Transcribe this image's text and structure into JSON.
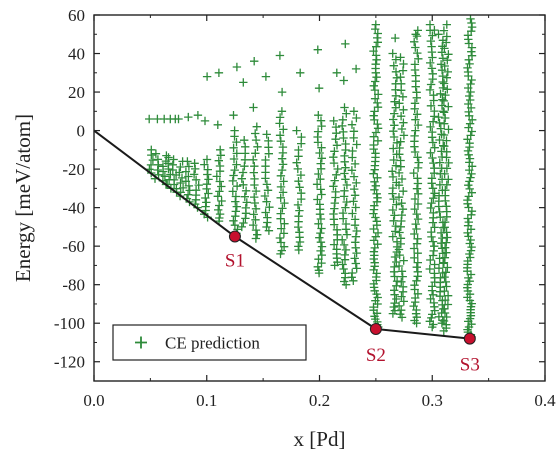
{
  "colors": {
    "points": "#2e8b3a",
    "hull_line": "#1a1a1a",
    "structure_marker": "#c8102e",
    "label_text": "#b3122e",
    "axis": "#222222"
  },
  "chart_data": {
    "type": "scatter",
    "xlabel": "x [Pd]",
    "ylabel": "Energy [meV/atom]",
    "xlim": [
      0.0,
      0.4
    ],
    "ylim": [
      -130,
      60
    ],
    "x_ticks": [
      0.0,
      0.1,
      0.2,
      0.3,
      0.4
    ],
    "x_tick_labels": [
      "0.0",
      "0.1",
      "0.2",
      "0.3",
      "0.4"
    ],
    "y_ticks": [
      -120,
      -100,
      -80,
      -60,
      -40,
      -20,
      0,
      20,
      40,
      60
    ],
    "y_tick_labels": [
      "-120",
      "-100",
      "-80",
      "-60",
      "-40",
      "-20",
      "0",
      "20",
      "40",
      "60"
    ],
    "grid": false,
    "legend": {
      "position": "bottom-left",
      "entries": [
        "CE prediction"
      ]
    },
    "series": [
      {
        "name": "CE prediction",
        "marker": "plus",
        "clusters": [
          {
            "x": 0.05,
            "ymin": -22,
            "ymax": -10,
            "density": 6
          },
          {
            "x": 0.0556,
            "ymin": -25,
            "ymax": -12,
            "density": 6
          },
          {
            "x": 0.0625,
            "ymin": -28,
            "ymax": -13,
            "density": 7
          },
          {
            "x": 0.0667,
            "ymin": -30,
            "ymax": -14,
            "density": 7
          },
          {
            "x": 0.0714,
            "ymin": -32,
            "ymax": -15,
            "density": 8
          },
          {
            "x": 0.0769,
            "ymin": -34,
            "ymax": -16,
            "density": 8
          },
          {
            "x": 0.0833,
            "ymin": -37,
            "ymax": -16,
            "density": 10
          },
          {
            "x": 0.0909,
            "ymin": -40,
            "ymax": -17,
            "density": 10
          },
          {
            "x": 0.1,
            "ymin": -45,
            "ymax": -15,
            "density": 14
          },
          {
            "x": 0.1111,
            "ymin": -47,
            "ymax": -10,
            "density": 16
          },
          {
            "x": 0.125,
            "ymin": -55,
            "ymax": 0,
            "density": 22
          },
          {
            "x": 0.1333,
            "ymin": -50,
            "ymax": -5,
            "density": 16
          },
          {
            "x": 0.1429,
            "ymin": -56,
            "ymax": 2,
            "density": 20
          },
          {
            "x": 0.1538,
            "ymin": -52,
            "ymax": -2,
            "density": 18
          },
          {
            "x": 0.1667,
            "ymin": -64,
            "ymax": 10,
            "density": 28
          },
          {
            "x": 0.1818,
            "ymin": -62,
            "ymax": 0,
            "density": 22
          },
          {
            "x": 0.2,
            "ymin": -74,
            "ymax": 8,
            "density": 34
          },
          {
            "x": 0.2143,
            "ymin": -70,
            "ymax": 5,
            "density": 28
          },
          {
            "x": 0.2222,
            "ymin": -80,
            "ymax": 12,
            "density": 34
          },
          {
            "x": 0.2308,
            "ymin": -78,
            "ymax": 10,
            "density": 30
          },
          {
            "x": 0.25,
            "ymin": -103,
            "ymax": 55,
            "density": 80
          },
          {
            "x": 0.2667,
            "ymin": -95,
            "ymax": 40,
            "density": 50
          },
          {
            "x": 0.2727,
            "ymin": -97,
            "ymax": 38,
            "density": 46
          },
          {
            "x": 0.2857,
            "ymin": -100,
            "ymax": 52,
            "density": 60
          },
          {
            "x": 0.3,
            "ymin": -102,
            "ymax": 55,
            "density": 64
          },
          {
            "x": 0.3077,
            "ymin": -100,
            "ymax": 50,
            "density": 56
          },
          {
            "x": 0.3125,
            "ymin": -104,
            "ymax": 55,
            "density": 60
          },
          {
            "x": 0.3333,
            "ymin": -108,
            "ymax": 58,
            "density": 90
          }
        ],
        "sparse_upper": [
          [
            0.05,
            6
          ],
          [
            0.0556,
            6
          ],
          [
            0.0625,
            6
          ],
          [
            0.0667,
            6
          ],
          [
            0.0714,
            6
          ],
          [
            0.0769,
            6
          ],
          [
            0.0833,
            7
          ],
          [
            0.0909,
            8
          ],
          [
            0.1,
            28
          ],
          [
            0.1111,
            30
          ],
          [
            0.125,
            33
          ],
          [
            0.1333,
            25
          ],
          [
            0.1429,
            36
          ],
          [
            0.1538,
            28
          ],
          [
            0.1667,
            39
          ],
          [
            0.1818,
            30
          ],
          [
            0.2,
            42
          ],
          [
            0.2143,
            30
          ],
          [
            0.2222,
            45
          ],
          [
            0.2308,
            32
          ],
          [
            0.2667,
            48
          ],
          [
            0.2857,
            50
          ],
          [
            0.3,
            52
          ],
          [
            0.1,
            5
          ],
          [
            0.1111,
            3
          ],
          [
            0.125,
            8
          ],
          [
            0.1429,
            12
          ],
          [
            0.1667,
            20
          ],
          [
            0.2,
            22
          ],
          [
            0.2222,
            26
          ]
        ]
      },
      {
        "name": "convex hull",
        "x": [
          0.0,
          0.125,
          0.25,
          0.3333
        ],
        "y": [
          0,
          -55,
          -103,
          -108
        ]
      }
    ],
    "structures": [
      {
        "label": "S1",
        "x": 0.125,
        "y": -55
      },
      {
        "label": "S2",
        "x": 0.25,
        "y": -103
      },
      {
        "label": "S3",
        "x": 0.3333,
        "y": -108
      }
    ]
  }
}
